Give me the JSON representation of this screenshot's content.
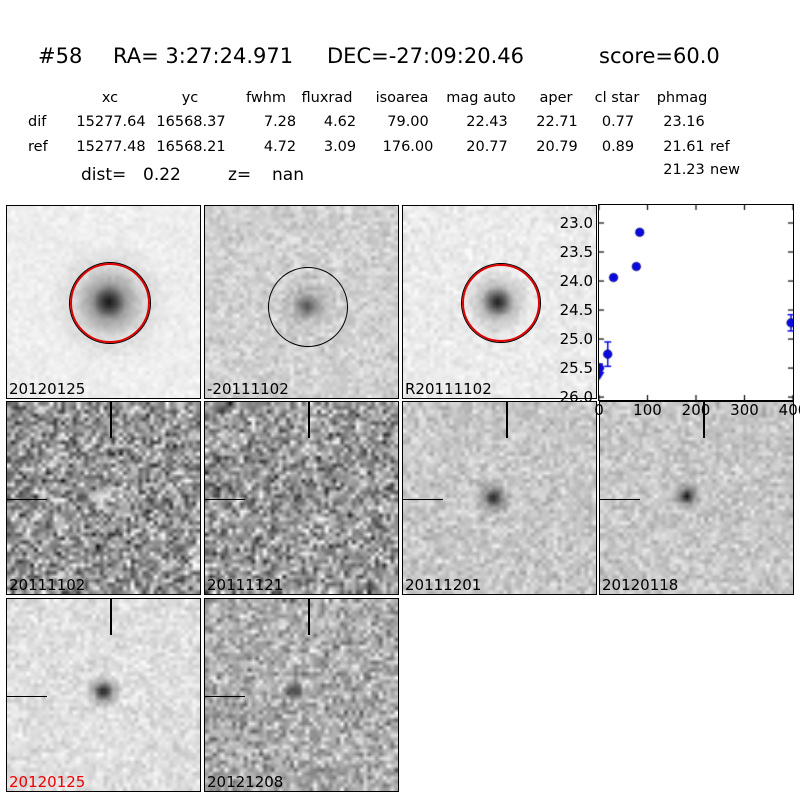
{
  "header": {
    "id": "#58",
    "ra": "RA= 3:27:24.971",
    "dec": "DEC=-27:09:20.46",
    "score": "score=60.0"
  },
  "table": {
    "headers": [
      "xc",
      "yc",
      "fwhm",
      "fluxrad",
      "isoarea",
      "mag auto",
      "aper",
      "cl star",
      "phmag"
    ],
    "rows": [
      {
        "name": "dif",
        "values": [
          "15277.64",
          "16568.37",
          "7.28",
          "4.62",
          "79.00",
          "22.43",
          "22.71",
          "0.77",
          "23.16"
        ],
        "suffix": ""
      },
      {
        "name": "ref",
        "values": [
          "15277.48",
          "16568.21",
          "4.72",
          "3.09",
          "176.00",
          "20.77",
          "20.79",
          "0.89",
          "21.61"
        ],
        "suffix": "ref"
      }
    ],
    "extra": {
      "value": "21.23",
      "suffix": "new"
    }
  },
  "dist": {
    "label": "dist=",
    "value": "0.22"
  },
  "redshift": {
    "label": "z=",
    "value": "nan"
  },
  "colors": {
    "aperture_red": "#e00000",
    "aperture_black": "#000000",
    "marker_blue": "#0a0ae0",
    "flag_red": "#ee0000"
  },
  "panels": [
    {
      "label": "20120125",
      "label_color": "#000000",
      "row": 0,
      "col": 0,
      "circle": {
        "color": "#e00000",
        "fx": 0.528,
        "fy": 0.5,
        "r": 40
      },
      "render": {
        "base": 238,
        "amp": 5,
        "blobs": [
          [
            0.528,
            0.5,
            0.32,
            0.22,
            0
          ],
          [
            0.528,
            0.5,
            0.18,
            0.45,
            0
          ],
          [
            0.528,
            0.5,
            0.09,
            0.92,
            0
          ]
        ]
      }
    },
    {
      "label": "-20111102",
      "label_color": "#000000",
      "row": 0,
      "col": 1,
      "circle": {
        "color": "#000000",
        "fx": 0.53,
        "fy": 0.52,
        "r": 40
      },
      "render": {
        "base": 209,
        "amp": 12,
        "blobs": [
          [
            0.53,
            0.52,
            0.15,
            0.28,
            0
          ],
          [
            0.53,
            0.52,
            0.07,
            0.52,
            0
          ]
        ]
      }
    },
    {
      "label": "R20111102",
      "label_color": "#000000",
      "row": 0,
      "col": 2,
      "circle": {
        "color": "#e00000",
        "fx": 0.5,
        "fy": 0.5,
        "r": 39
      },
      "render": {
        "base": 235,
        "amp": 7,
        "blobs": [
          [
            0.49,
            0.5,
            0.18,
            0.35,
            0
          ],
          [
            0.49,
            0.5,
            0.085,
            0.92,
            0
          ]
        ]
      }
    },
    {
      "label": "20111102",
      "label_color": "#000000",
      "row": 1,
      "col": 0,
      "crosshair": true,
      "render": {
        "base": 149,
        "amp": 42,
        "blobs": [
          [
            0.48,
            0.5,
            0.06,
            0.88,
            1
          ]
        ]
      }
    },
    {
      "label": "20111121",
      "label_color": "#000000",
      "row": 1,
      "col": 1,
      "crosshair": true,
      "render": {
        "base": 152,
        "amp": 40,
        "blobs": [
          [
            0.45,
            0.48,
            0.075,
            0.3,
            0
          ]
        ]
      }
    },
    {
      "label": "20111201",
      "label_color": "#000000",
      "row": 1,
      "col": 2,
      "crosshair": true,
      "render": {
        "base": 199,
        "amp": 15,
        "blobs": [
          [
            0.47,
            0.5,
            0.105,
            0.45,
            0
          ],
          [
            0.47,
            0.5,
            0.05,
            0.82,
            0
          ]
        ]
      }
    },
    {
      "label": "20120118",
      "label_color": "#000000",
      "row": 1,
      "col": 3,
      "crosshair": true,
      "render": {
        "base": 199,
        "amp": 14,
        "blobs": [
          [
            0.45,
            0.49,
            0.08,
            0.5,
            0
          ],
          [
            0.45,
            0.49,
            0.04,
            0.92,
            0
          ]
        ]
      }
    },
    {
      "label": "20120125",
      "label_color": "#ee0000",
      "row": 2,
      "col": 0,
      "crosshair": true,
      "render": {
        "base": 223,
        "amp": 11,
        "blobs": [
          [
            0.5,
            0.48,
            0.1,
            0.5,
            0
          ],
          [
            0.5,
            0.48,
            0.05,
            0.9,
            0
          ]
        ]
      }
    },
    {
      "label": "20121208",
      "label_color": "#000000",
      "row": 2,
      "col": 1,
      "crosshair": true,
      "render": {
        "base": 172,
        "amp": 28,
        "blobs": [
          [
            0.46,
            0.48,
            0.055,
            0.78,
            0
          ]
        ]
      }
    }
  ],
  "chart_data": {
    "type": "scatter",
    "title": "",
    "xlabel": "",
    "ylabel": "",
    "x_range": [
      0,
      400
    ],
    "y_range": [
      26.05,
      22.69
    ],
    "y_inverted": true,
    "grid": false,
    "xticks": [
      0,
      100,
      200,
      300,
      400
    ],
    "xtick_labels": [
      "0",
      "100",
      "200",
      "300",
      "400"
    ],
    "yticks": [
      23.0,
      23.5,
      24.0,
      24.5,
      25.0,
      25.5,
      26.0
    ],
    "ytick_labels": [
      "23.0",
      "23.5",
      "24.0",
      "24.5",
      "25.0",
      "25.5",
      "26.0"
    ],
    "series": [
      {
        "name": "light-curve-mag",
        "color": "#0a0ae0",
        "points": [
          {
            "x": 1,
            "y": 25.5,
            "yerr": 0.07
          },
          {
            "x": 1,
            "y": 25.62,
            "marker": "v"
          },
          {
            "x": 18,
            "y": 25.26,
            "yerr": 0.21
          },
          {
            "x": 30,
            "y": 23.94,
            "yerr": 0.04
          },
          {
            "x": 77,
            "y": 23.75,
            "yerr": 0.04
          },
          {
            "x": 84,
            "y": 23.16,
            "yerr": 0.04
          },
          {
            "x": 396,
            "y": 24.72,
            "yerr": 0.14
          }
        ]
      }
    ]
  }
}
